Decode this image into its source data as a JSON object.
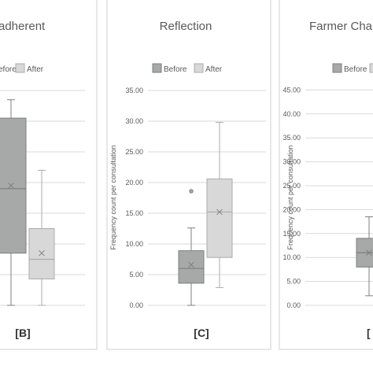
{
  "colors": {
    "before": "#a7a9a9",
    "before_stroke": "#7c7f80",
    "after": "#d8d8d8",
    "after_stroke": "#a9abab",
    "grid": "#d9d9d9",
    "panel_border": "#d0d0d0",
    "text": "#595959"
  },
  "chart_data": [
    {
      "type": "box",
      "panel_label": "[B]",
      "title": "adherent",
      "legend": [
        "efore",
        "After"
      ],
      "series": [
        {
          "name": "Before",
          "min": 0.0,
          "q1": 8.5,
          "median": 19.0,
          "q3": 30.5,
          "max": 33.5,
          "mean": 19.5,
          "outliers": []
        },
        {
          "name": "After",
          "min": 0.0,
          "q1": 4.3,
          "median": 7.5,
          "q3": 12.5,
          "max": 22.0,
          "mean": 8.5,
          "outliers": []
        }
      ]
    },
    {
      "type": "box",
      "panel_label": "[C]",
      "title": "Reflection",
      "ylabel": "Frequency count per consultation",
      "ylim": [
        0,
        35
      ],
      "yticks": [
        "0.00",
        "5.00",
        "10.00",
        "15.00",
        "20.00",
        "25.00",
        "30.00",
        "35.00"
      ],
      "legend": [
        "Before",
        "After"
      ],
      "series": [
        {
          "name": "Before",
          "min": 0.0,
          "q1": 3.6,
          "median": 6.0,
          "q3": 8.9,
          "max": 12.6,
          "mean": 6.6,
          "outliers": [
            18.6
          ]
        },
        {
          "name": "After",
          "min": 2.9,
          "q1": 7.8,
          "median": 15.2,
          "q3": 20.6,
          "max": 29.8,
          "mean": 15.2,
          "outliers": []
        }
      ]
    },
    {
      "type": "box",
      "panel_label": "[",
      "title": "Farmer Cha",
      "ylabel": "Frequency count per consultation",
      "ylim": [
        0,
        45
      ],
      "yticks": [
        "0.00",
        "5.00",
        "10.00",
        "15.00",
        "20.00",
        "25.00",
        "30.00",
        "35.00",
        "40.00",
        "45.00"
      ],
      "legend": [
        "Before",
        ""
      ],
      "series": [
        {
          "name": "Before",
          "min": 2.0,
          "q1": 8.0,
          "median": 11.0,
          "q3": 14.0,
          "max": 18.5,
          "mean": 11.0,
          "outliers": []
        }
      ]
    }
  ]
}
